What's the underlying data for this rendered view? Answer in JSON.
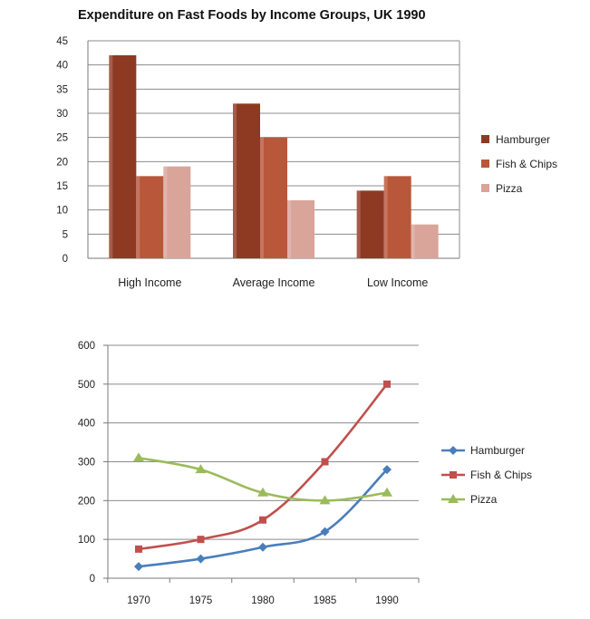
{
  "chart_data": [
    {
      "type": "bar",
      "title": "Expenditure on Fast Foods by Income Groups, UK 1990",
      "categories": [
        "High Income",
        "Average Income",
        "Low Income"
      ],
      "series": [
        {
          "name": "Hamburger",
          "values": [
            42,
            32,
            14
          ],
          "color": "#8e3a22"
        },
        {
          "name": "Fish & Chips",
          "values": [
            17,
            25,
            17
          ],
          "color": "#b9573a"
        },
        {
          "name": "Pizza",
          "values": [
            19,
            12,
            7
          ],
          "color": "#d9a49a"
        }
      ],
      "ylim": [
        0,
        45
      ],
      "yticks": [
        0,
        5,
        10,
        15,
        20,
        25,
        30,
        35,
        40,
        45
      ],
      "grid": true,
      "legend": "right"
    },
    {
      "type": "line",
      "x": [
        1970,
        1975,
        1980,
        1985,
        1990
      ],
      "series": [
        {
          "name": "Hamburger",
          "values": [
            30,
            50,
            80,
            120,
            280
          ],
          "color": "#4a7ebb",
          "marker": "diamond"
        },
        {
          "name": "Fish & Chips",
          "values": [
            75,
            100,
            150,
            300,
            500
          ],
          "color": "#c0504d",
          "marker": "square"
        },
        {
          "name": "Pizza",
          "values": [
            310,
            280,
            220,
            200,
            220
          ],
          "color": "#9bbb59",
          "marker": "triangle"
        }
      ],
      "ylim": [
        0,
        600
      ],
      "yticks": [
        0,
        100,
        200,
        300,
        400,
        500,
        600
      ],
      "grid": true,
      "legend": "right"
    }
  ]
}
